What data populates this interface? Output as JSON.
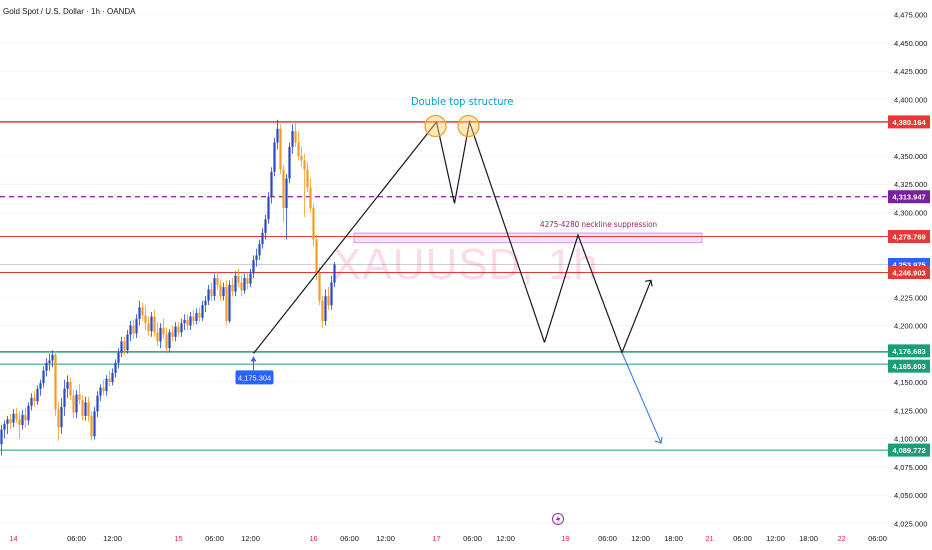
{
  "header": {
    "symbol_title": "Gold Spot / U.S. Dollar · 1h · OANDA"
  },
  "watermark": "XAUUSD, 1h",
  "annotations": {
    "double_top": "Double top structure",
    "neckline_zone": "4275-4280 neckline suppression",
    "swing_low_label": "4,175.304"
  },
  "colors": {
    "up": "#2948c7",
    "down": "#f59b22",
    "resistance": "#e53935",
    "support": "#1a9e78",
    "dashed": "#9c27b0",
    "zone": "#d081d9",
    "projection_down": "#3d7ad6"
  },
  "chart_data": {
    "type": "candlestick",
    "symbol": "XAUUSD",
    "timeframe": "1h",
    "y_axis": {
      "range": [
        4012,
        4488
      ],
      "ticks": [
        "4,475.000",
        "4,450.000",
        "4,425.000",
        "4,400.000",
        "4,350.000",
        "4,325.000",
        "4,300.000",
        "4,225.000",
        "4,200.000",
        "4,150.000",
        "4,125.000",
        "4,100.000",
        "4,075.000",
        "4,050.000",
        "4,025.000"
      ],
      "tick_values": [
        4475,
        4450,
        4425,
        4400,
        4350,
        4325,
        4300,
        4225,
        4200,
        4150,
        4125,
        4100,
        4075,
        4050,
        4025
      ]
    },
    "x_axis": {
      "labels": [
        {
          "text": "14",
          "day": true
        },
        {
          "text": "06:00"
        },
        {
          "text": "12:00"
        },
        {
          "text": "15",
          "day": true
        },
        {
          "text": "06:00"
        },
        {
          "text": "12:00"
        },
        {
          "text": "16",
          "day": true
        },
        {
          "text": "06:00"
        },
        {
          "text": "12:00"
        },
        {
          "text": "17",
          "day": true
        },
        {
          "text": "06:00"
        },
        {
          "text": "12:00"
        },
        {
          "text": "19",
          "day": true
        },
        {
          "text": "06:00"
        },
        {
          "text": "12:00"
        },
        {
          "text": "18:00"
        },
        {
          "text": "21",
          "day": true
        },
        {
          "text": "06:00"
        },
        {
          "text": "12:00"
        },
        {
          "text": "18:00"
        },
        {
          "text": "22",
          "day": true
        },
        {
          "text": "06:00"
        }
      ],
      "label_bars": [
        4,
        25,
        37,
        59,
        71,
        83,
        104,
        116,
        128,
        145,
        157,
        168,
        188,
        202,
        213,
        224,
        236,
        247,
        258,
        269,
        280,
        292
      ]
    },
    "levels": [
      {
        "value": 4380.164,
        "label": "4,380.164",
        "style": "resistance"
      },
      {
        "value": 4313.947,
        "label": "4,313.947",
        "style": "dashed"
      },
      {
        "value": 4278.769,
        "label": "4,278.769",
        "style": "resistance"
      },
      {
        "value": 4253.975,
        "label": "4,253.975",
        "style": "price"
      },
      {
        "value": 4246.903,
        "label": "4,246.903",
        "style": "resistance"
      },
      {
        "value": 4176.683,
        "label": "4,176.683",
        "style": "support"
      },
      {
        "value": 4165.803,
        "label": "4,165.803",
        "style": "support"
      },
      {
        "value": 4089.772,
        "label": "4,089.772",
        "style": "support"
      }
    ],
    "neckline_zone": [
      4275,
      4280
    ],
    "candles": [
      {
        "o": 4095,
        "h": 4112,
        "l": 4085,
        "c": 4108
      },
      {
        "o": 4108,
        "h": 4116,
        "l": 4100,
        "c": 4113
      },
      {
        "o": 4113,
        "h": 4120,
        "l": 4104,
        "c": 4117
      },
      {
        "o": 4117,
        "h": 4122,
        "l": 4109,
        "c": 4114
      },
      {
        "o": 4114,
        "h": 4126,
        "l": 4110,
        "c": 4122
      },
      {
        "o": 4122,
        "h": 4127,
        "l": 4114,
        "c": 4117
      },
      {
        "o": 4117,
        "h": 4124,
        "l": 4100,
        "c": 4112
      },
      {
        "o": 4112,
        "h": 4125,
        "l": 4108,
        "c": 4121
      },
      {
        "o": 4121,
        "h": 4127,
        "l": 4110,
        "c": 4116
      },
      {
        "o": 4116,
        "h": 4132,
        "l": 4112,
        "c": 4129
      },
      {
        "o": 4129,
        "h": 4140,
        "l": 4125,
        "c": 4136
      },
      {
        "o": 4136,
        "h": 4142,
        "l": 4128,
        "c": 4133
      },
      {
        "o": 4133,
        "h": 4147,
        "l": 4130,
        "c": 4144
      },
      {
        "o": 4144,
        "h": 4152,
        "l": 4138,
        "c": 4149
      },
      {
        "o": 4149,
        "h": 4164,
        "l": 4145,
        "c": 4160
      },
      {
        "o": 4160,
        "h": 4171,
        "l": 4155,
        "c": 4167
      },
      {
        "o": 4167,
        "h": 4175,
        "l": 4160,
        "c": 4169
      },
      {
        "o": 4169,
        "h": 4178,
        "l": 4163,
        "c": 4174
      },
      {
        "o": 4174,
        "h": 4177,
        "l": 4120,
        "c": 4126
      },
      {
        "o": 4126,
        "h": 4132,
        "l": 4098,
        "c": 4110
      },
      {
        "o": 4110,
        "h": 4136,
        "l": 4104,
        "c": 4128
      },
      {
        "o": 4128,
        "h": 4152,
        "l": 4120,
        "c": 4144
      },
      {
        "o": 4144,
        "h": 4156,
        "l": 4136,
        "c": 4150
      },
      {
        "o": 4150,
        "h": 4154,
        "l": 4134,
        "c": 4138
      },
      {
        "o": 4138,
        "h": 4143,
        "l": 4118,
        "c": 4123
      },
      {
        "o": 4123,
        "h": 4143,
        "l": 4118,
        "c": 4139
      },
      {
        "o": 4139,
        "h": 4148,
        "l": 4130,
        "c": 4134
      },
      {
        "o": 4134,
        "h": 4138,
        "l": 4116,
        "c": 4120
      },
      {
        "o": 4120,
        "h": 4137,
        "l": 4116,
        "c": 4132
      },
      {
        "o": 4132,
        "h": 4137,
        "l": 4115,
        "c": 4120
      },
      {
        "o": 4120,
        "h": 4124,
        "l": 4098,
        "c": 4102
      },
      {
        "o": 4102,
        "h": 4128,
        "l": 4099,
        "c": 4124
      },
      {
        "o": 4124,
        "h": 4142,
        "l": 4119,
        "c": 4138
      },
      {
        "o": 4138,
        "h": 4148,
        "l": 4133,
        "c": 4145
      },
      {
        "o": 4145,
        "h": 4152,
        "l": 4138,
        "c": 4142
      },
      {
        "o": 4142,
        "h": 4156,
        "l": 4138,
        "c": 4153
      },
      {
        "o": 4153,
        "h": 4160,
        "l": 4146,
        "c": 4150
      },
      {
        "o": 4150,
        "h": 4162,
        "l": 4147,
        "c": 4158
      },
      {
        "o": 4158,
        "h": 4170,
        "l": 4154,
        "c": 4167
      },
      {
        "o": 4167,
        "h": 4180,
        "l": 4162,
        "c": 4176
      },
      {
        "o": 4176,
        "h": 4190,
        "l": 4172,
        "c": 4186
      },
      {
        "o": 4186,
        "h": 4190,
        "l": 4174,
        "c": 4178
      },
      {
        "o": 4178,
        "h": 4196,
        "l": 4175,
        "c": 4192
      },
      {
        "o": 4192,
        "h": 4204,
        "l": 4186,
        "c": 4200
      },
      {
        "o": 4200,
        "h": 4205,
        "l": 4188,
        "c": 4193
      },
      {
        "o": 4193,
        "h": 4210,
        "l": 4189,
        "c": 4206
      },
      {
        "o": 4206,
        "h": 4222,
        "l": 4200,
        "c": 4216
      },
      {
        "o": 4216,
        "h": 4220,
        "l": 4204,
        "c": 4209
      },
      {
        "o": 4209,
        "h": 4217,
        "l": 4196,
        "c": 4202
      },
      {
        "o": 4202,
        "h": 4208,
        "l": 4191,
        "c": 4195
      },
      {
        "o": 4195,
        "h": 4212,
        "l": 4190,
        "c": 4208
      },
      {
        "o": 4208,
        "h": 4214,
        "l": 4190,
        "c": 4194
      },
      {
        "o": 4194,
        "h": 4203,
        "l": 4182,
        "c": 4186
      },
      {
        "o": 4186,
        "h": 4202,
        "l": 4180,
        "c": 4198
      },
      {
        "o": 4198,
        "h": 4206,
        "l": 4188,
        "c": 4192
      },
      {
        "o": 4192,
        "h": 4198,
        "l": 4175,
        "c": 4180
      },
      {
        "o": 4180,
        "h": 4197,
        "l": 4176,
        "c": 4194
      },
      {
        "o": 4194,
        "h": 4200,
        "l": 4186,
        "c": 4190
      },
      {
        "o": 4190,
        "h": 4203,
        "l": 4186,
        "c": 4199
      },
      {
        "o": 4199,
        "h": 4203,
        "l": 4190,
        "c": 4194
      },
      {
        "o": 4194,
        "h": 4206,
        "l": 4190,
        "c": 4202
      },
      {
        "o": 4202,
        "h": 4210,
        "l": 4196,
        "c": 4205
      },
      {
        "o": 4205,
        "h": 4210,
        "l": 4196,
        "c": 4200
      },
      {
        "o": 4200,
        "h": 4212,
        "l": 4196,
        "c": 4208
      },
      {
        "o": 4208,
        "h": 4214,
        "l": 4200,
        "c": 4204
      },
      {
        "o": 4204,
        "h": 4215,
        "l": 4201,
        "c": 4211
      },
      {
        "o": 4211,
        "h": 4216,
        "l": 4203,
        "c": 4207
      },
      {
        "o": 4207,
        "h": 4222,
        "l": 4204,
        "c": 4218
      },
      {
        "o": 4218,
        "h": 4226,
        "l": 4212,
        "c": 4222
      },
      {
        "o": 4222,
        "h": 4236,
        "l": 4218,
        "c": 4232
      },
      {
        "o": 4232,
        "h": 4238,
        "l": 4222,
        "c": 4226
      },
      {
        "o": 4226,
        "h": 4246,
        "l": 4222,
        "c": 4242
      },
      {
        "o": 4242,
        "h": 4248,
        "l": 4232,
        "c": 4236
      },
      {
        "o": 4236,
        "h": 4240,
        "l": 4222,
        "c": 4226
      },
      {
        "o": 4226,
        "h": 4238,
        "l": 4222,
        "c": 4234
      },
      {
        "o": 4234,
        "h": 4240,
        "l": 4200,
        "c": 4204
      },
      {
        "o": 4204,
        "h": 4240,
        "l": 4202,
        "c": 4236
      },
      {
        "o": 4236,
        "h": 4242,
        "l": 4226,
        "c": 4230
      },
      {
        "o": 4230,
        "h": 4248,
        "l": 4226,
        "c": 4244
      },
      {
        "o": 4244,
        "h": 4250,
        "l": 4234,
        "c": 4238
      },
      {
        "o": 4238,
        "h": 4244,
        "l": 4226,
        "c": 4231
      },
      {
        "o": 4231,
        "h": 4246,
        "l": 4228,
        "c": 4242
      },
      {
        "o": 4242,
        "h": 4247,
        "l": 4232,
        "c": 4237
      },
      {
        "o": 4237,
        "h": 4250,
        "l": 4234,
        "c": 4246
      },
      {
        "o": 4246,
        "h": 4262,
        "l": 4242,
        "c": 4258
      },
      {
        "o": 4258,
        "h": 4268,
        "l": 4252,
        "c": 4262
      },
      {
        "o": 4262,
        "h": 4276,
        "l": 4258,
        "c": 4272
      },
      {
        "o": 4272,
        "h": 4286,
        "l": 4268,
        "c": 4282
      },
      {
        "o": 4282,
        "h": 4298,
        "l": 4276,
        "c": 4294
      },
      {
        "o": 4294,
        "h": 4318,
        "l": 4290,
        "c": 4314
      },
      {
        "o": 4314,
        "h": 4340,
        "l": 4308,
        "c": 4336
      },
      {
        "o": 4336,
        "h": 4366,
        "l": 4332,
        "c": 4362
      },
      {
        "o": 4362,
        "h": 4382,
        "l": 4356,
        "c": 4374
      },
      {
        "o": 4374,
        "h": 4378,
        "l": 4334,
        "c": 4338
      },
      {
        "o": 4338,
        "h": 4342,
        "l": 4292,
        "c": 4304
      },
      {
        "o": 4304,
        "h": 4334,
        "l": 4276,
        "c": 4330
      },
      {
        "o": 4330,
        "h": 4362,
        "l": 4326,
        "c": 4358
      },
      {
        "o": 4358,
        "h": 4378,
        "l": 4352,
        "c": 4372
      },
      {
        "o": 4372,
        "h": 4380,
        "l": 4358,
        "c": 4362
      },
      {
        "o": 4362,
        "h": 4372,
        "l": 4346,
        "c": 4350
      },
      {
        "o": 4350,
        "h": 4358,
        "l": 4340,
        "c": 4346
      },
      {
        "o": 4346,
        "h": 4352,
        "l": 4296,
        "c": 4338
      },
      {
        "o": 4338,
        "h": 4344,
        "l": 4318,
        "c": 4322
      },
      {
        "o": 4322,
        "h": 4330,
        "l": 4300,
        "c": 4304
      },
      {
        "o": 4304,
        "h": 4308,
        "l": 4270,
        "c": 4276
      },
      {
        "o": 4276,
        "h": 4280,
        "l": 4240,
        "c": 4246
      },
      {
        "o": 4246,
        "h": 4252,
        "l": 4218,
        "c": 4222
      },
      {
        "o": 4222,
        "h": 4226,
        "l": 4198,
        "c": 4204
      },
      {
        "o": 4204,
        "h": 4232,
        "l": 4200,
        "c": 4226
      },
      {
        "o": 4226,
        "h": 4234,
        "l": 4214,
        "c": 4218
      },
      {
        "o": 4218,
        "h": 4244,
        "l": 4214,
        "c": 4238
      },
      {
        "o": 4238,
        "h": 4256,
        "l": 4234,
        "c": 4254
      }
    ]
  }
}
